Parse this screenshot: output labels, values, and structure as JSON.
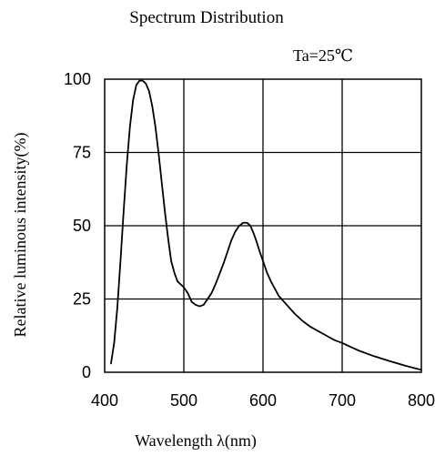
{
  "chart_data": {
    "type": "line",
    "title": "Spectrum Distribution",
    "annotation": "Ta=25℃",
    "xlabel": "Wavelength  λ(nm)",
    "ylabel": "Relative luminous intensity(%)",
    "xlim": [
      400,
      800
    ],
    "ylim": [
      0,
      100
    ],
    "x_ticks": [
      400,
      500,
      600,
      700,
      800
    ],
    "y_ticks": [
      0,
      25,
      50,
      75,
      100
    ],
    "x_tick_labels": [
      "400",
      "500",
      "600",
      "700",
      "800"
    ],
    "y_tick_labels": [
      "0",
      "25",
      "50",
      "75",
      "100"
    ],
    "grid": true,
    "line_color": "#000000",
    "series": [
      {
        "x": [
          408,
          412,
          416,
          420,
          424,
          428,
          432,
          436,
          440,
          444,
          448,
          452,
          456,
          460,
          464,
          468,
          472,
          476,
          480,
          484,
          488,
          492,
          496,
          500,
          505,
          510,
          515,
          520,
          525,
          530,
          535,
          540,
          545,
          550,
          555,
          560,
          565,
          570,
          575,
          580,
          584,
          588,
          592,
          596,
          600,
          605,
          610,
          615,
          620,
          630,
          640,
          650,
          660,
          670,
          680,
          690,
          700,
          720,
          740,
          760,
          780,
          800
        ],
        "y": [
          3,
          10,
          22,
          38,
          55,
          71,
          84,
          93,
          98,
          99.5,
          99.5,
          98.5,
          96,
          91,
          84,
          75,
          65,
          55,
          46,
          38,
          34,
          31,
          30,
          29,
          27,
          24,
          23,
          22.5,
          23,
          25,
          27,
          30,
          33.5,
          37,
          41,
          45,
          48,
          50,
          51,
          51,
          50,
          47.5,
          44.5,
          41,
          38,
          34,
          31,
          28.5,
          26,
          23,
          20,
          17.5,
          15.5,
          14,
          12.5,
          11,
          10,
          7.5,
          5.5,
          3.8,
          2.2,
          0.8
        ]
      }
    ]
  }
}
